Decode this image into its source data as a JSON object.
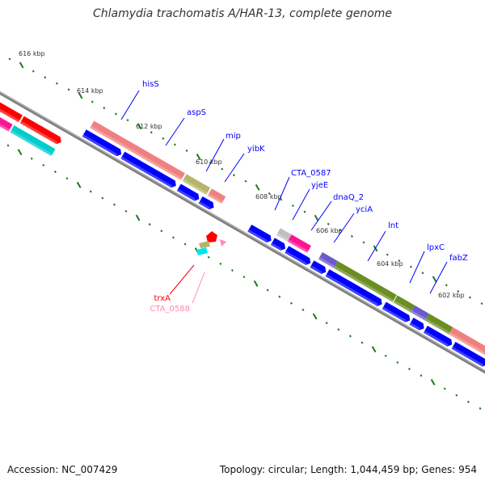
{
  "title": "Chlamydia trachomatis A/HAR-13, complete genome",
  "footer": {
    "accession": "Accession: NC_007429",
    "summary": "Topology: circular; Length: 1,044,459 bp; Genes: 954"
  },
  "ticks": [
    "616 kbp",
    "614 kbp",
    "612 kbp",
    "610 kbp",
    "608 kbp",
    "606 kbp",
    "604 kbp",
    "602 kbp"
  ],
  "gene_labels": [
    {
      "name": "hisS",
      "color": "#0000ff"
    },
    {
      "name": "aspS",
      "color": "#0000ff"
    },
    {
      "name": "mip",
      "color": "#0000ff"
    },
    {
      "name": "yibK",
      "color": "#0000ff"
    },
    {
      "name": "CTA_0587",
      "color": "#0000ff"
    },
    {
      "name": "yjeE",
      "color": "#0000ff"
    },
    {
      "name": "dnaQ_2",
      "color": "#0000ff"
    },
    {
      "name": "yciA",
      "color": "#0000ff"
    },
    {
      "name": "lnt",
      "color": "#0000ff"
    },
    {
      "name": "lpxC",
      "color": "#0000ff"
    },
    {
      "name": "fabZ",
      "color": "#0000ff"
    },
    {
      "name": "trxA",
      "color": "#ff0000"
    },
    {
      "name": "CTA_0588",
      "color": "#ff88bb"
    }
  ],
  "colors": {
    "cds": "#0000ff",
    "backbone": "#808080",
    "ticks": "#1a7a1a"
  }
}
